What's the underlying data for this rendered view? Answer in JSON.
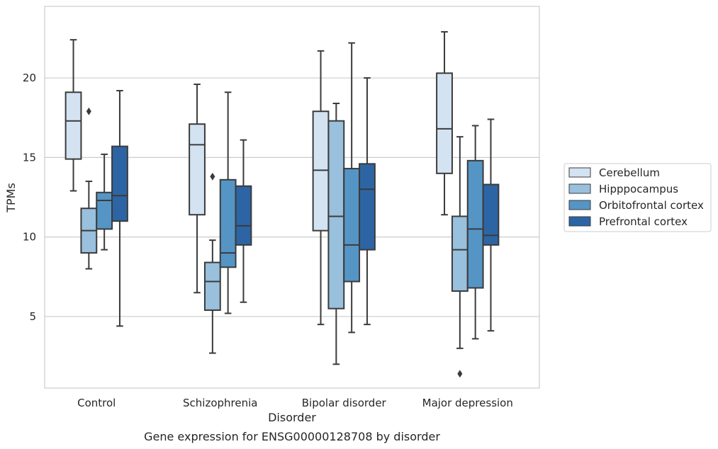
{
  "chart_data": {
    "type": "box",
    "title": "",
    "caption": "Gene expression for ENSG00000128708 by disorder",
    "xlabel": "Disorder",
    "ylabel": "TPMs",
    "ylim": [
      0.5,
      24.5
    ],
    "yticks": [
      5,
      10,
      15,
      20
    ],
    "grid": "horizontal",
    "legend_position": "right",
    "categories": [
      "Control",
      "Schizophrenia",
      "Bipolar disorder",
      "Major depression"
    ],
    "series": [
      {
        "name": "Cerebellum",
        "color": "#d4e3f2",
        "boxes": [
          {
            "whislo": 12.9,
            "q1": 14.9,
            "med": 17.3,
            "q3": 19.1,
            "whishi": 22.4,
            "fliers": []
          },
          {
            "whislo": 6.5,
            "q1": 11.4,
            "med": 15.8,
            "q3": 17.1,
            "whishi": 19.6,
            "fliers": []
          },
          {
            "whislo": 4.5,
            "q1": 10.4,
            "med": 14.2,
            "q3": 17.9,
            "whishi": 21.7,
            "fliers": []
          },
          {
            "whislo": 11.4,
            "q1": 14.0,
            "med": 16.8,
            "q3": 20.3,
            "whishi": 22.9,
            "fliers": []
          }
        ]
      },
      {
        "name": "Hipppocampus",
        "color": "#99c0dc",
        "boxes": [
          {
            "whislo": 8.0,
            "q1": 9.0,
            "med": 10.4,
            "q3": 11.8,
            "whishi": 13.5,
            "fliers": [
              17.9
            ]
          },
          {
            "whislo": 2.7,
            "q1": 5.4,
            "med": 7.2,
            "q3": 8.4,
            "whishi": 9.8,
            "fliers": [
              13.8
            ]
          },
          {
            "whislo": 2.0,
            "q1": 5.5,
            "med": 11.3,
            "q3": 17.3,
            "whishi": 18.4,
            "fliers": []
          },
          {
            "whislo": 3.0,
            "q1": 6.6,
            "med": 9.2,
            "q3": 11.3,
            "whishi": 16.3,
            "fliers": [
              1.4
            ]
          }
        ]
      },
      {
        "name": "Orbitofrontal cortex",
        "color": "#5595c5",
        "boxes": [
          {
            "whislo": 9.2,
            "q1": 10.5,
            "med": 12.3,
            "q3": 12.8,
            "whishi": 15.2,
            "fliers": []
          },
          {
            "whislo": 5.2,
            "q1": 8.1,
            "med": 9.0,
            "q3": 13.6,
            "whishi": 19.1,
            "fliers": []
          },
          {
            "whislo": 4.0,
            "q1": 7.2,
            "med": 9.5,
            "q3": 14.3,
            "whishi": 22.2,
            "fliers": []
          },
          {
            "whislo": 3.6,
            "q1": 6.8,
            "med": 10.5,
            "q3": 14.8,
            "whishi": 17.0,
            "fliers": []
          }
        ]
      },
      {
        "name": "Prefrontal cortex",
        "color": "#2d65a4",
        "boxes": [
          {
            "whislo": 4.4,
            "q1": 11.0,
            "med": 12.6,
            "q3": 15.7,
            "whishi": 19.2,
            "fliers": []
          },
          {
            "whislo": 5.9,
            "q1": 9.5,
            "med": 10.7,
            "q3": 13.2,
            "whishi": 16.1,
            "fliers": []
          },
          {
            "whislo": 4.5,
            "q1": 9.2,
            "med": 13.0,
            "q3": 14.6,
            "whishi": 20.0,
            "fliers": []
          },
          {
            "whislo": 4.1,
            "q1": 9.5,
            "med": 10.1,
            "q3": 13.3,
            "whishi": 17.4,
            "fliers": []
          }
        ]
      }
    ]
  }
}
